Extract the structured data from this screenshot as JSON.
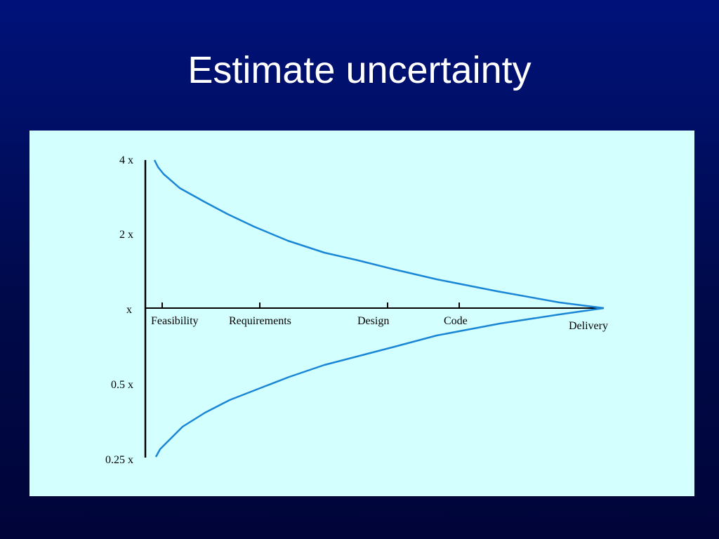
{
  "slide": {
    "title": "Estimate uncertainty"
  },
  "diagram": {
    "y_labels": [
      "4 x",
      "2 x",
      "x",
      "0.5 x",
      "0.25 x"
    ],
    "phases": [
      "Feasibility",
      "Requirements",
      "Design",
      "Code",
      "Delivery"
    ],
    "colors": {
      "curve": "#1a86d6",
      "axis": "#000000",
      "panel": "#d4ffff"
    }
  }
}
